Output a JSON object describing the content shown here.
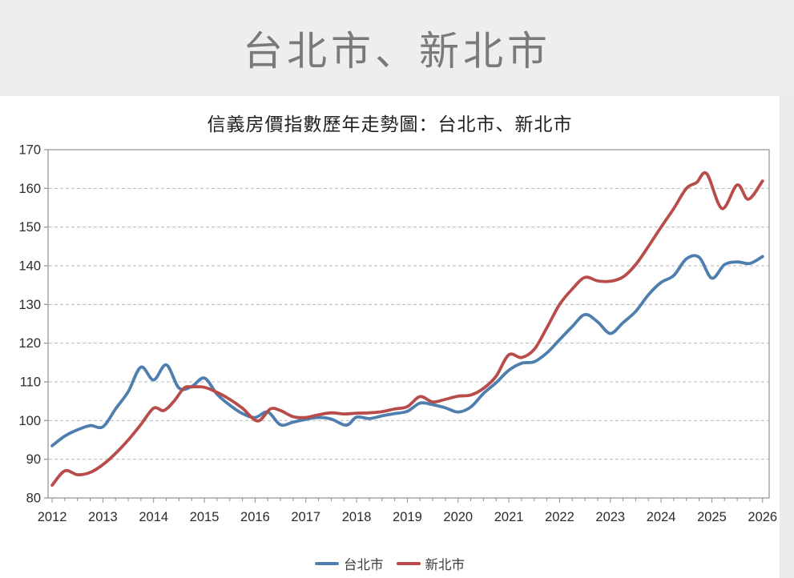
{
  "banner": {
    "title": "台北市、新北市"
  },
  "chart": {
    "title": "信義房價指數歷年走勢圖：台北市、新北市",
    "legend": {
      "taipei_label": "台北市",
      "new_taipei_label": "新北市"
    },
    "colors": {
      "taipei": "#4d7eae",
      "new_taipei": "#b84c4a",
      "gridline": "#b9b9b9",
      "plot_border": "#8f8f8f",
      "tick_text": "#2b2b2b"
    }
  },
  "chart_data": {
    "type": "line",
    "title": "信義房價指數歷年走勢圖：台北市、新北市",
    "xlabel": "",
    "ylabel": "",
    "xlim": [
      2011.92,
      2026.13
    ],
    "ylim": [
      80,
      170
    ],
    "x_ticks": [
      2012,
      2013,
      2014,
      2015,
      2016,
      2017,
      2018,
      2019,
      2020,
      2021,
      2022,
      2023,
      2024,
      2025,
      2026
    ],
    "y_ticks": [
      80,
      90,
      100,
      110,
      120,
      130,
      140,
      150,
      160,
      170
    ],
    "grid": "horizontal-dashed",
    "legend_position": "bottom",
    "line_style": "smooth",
    "series": [
      {
        "id": "taipei",
        "name": "台北市",
        "color": "#4d7eae",
        "points": [
          [
            2012.0,
            93.5
          ],
          [
            2012.25,
            96.0
          ],
          [
            2012.5,
            97.6
          ],
          [
            2012.75,
            98.7
          ],
          [
            2013.0,
            98.4
          ],
          [
            2013.25,
            103.0
          ],
          [
            2013.5,
            107.5
          ],
          [
            2013.75,
            113.8
          ],
          [
            2014.0,
            110.5
          ],
          [
            2014.25,
            114.4
          ],
          [
            2014.5,
            108.4
          ],
          [
            2014.75,
            108.8
          ],
          [
            2015.0,
            111.0
          ],
          [
            2015.25,
            106.8
          ],
          [
            2015.5,
            104.0
          ],
          [
            2015.75,
            101.8
          ],
          [
            2016.0,
            100.8
          ],
          [
            2016.25,
            102.2
          ],
          [
            2016.5,
            98.9
          ],
          [
            2016.75,
            99.6
          ],
          [
            2017.0,
            100.3
          ],
          [
            2017.25,
            100.8
          ],
          [
            2017.5,
            100.4
          ],
          [
            2017.8,
            98.8
          ],
          [
            2018.0,
            100.9
          ],
          [
            2018.25,
            100.5
          ],
          [
            2018.5,
            101.2
          ],
          [
            2018.75,
            101.8
          ],
          [
            2019.0,
            102.4
          ],
          [
            2019.25,
            104.5
          ],
          [
            2019.5,
            104.1
          ],
          [
            2019.75,
            103.3
          ],
          [
            2020.0,
            102.2
          ],
          [
            2020.25,
            103.5
          ],
          [
            2020.5,
            107.0
          ],
          [
            2020.75,
            109.8
          ],
          [
            2021.0,
            113.0
          ],
          [
            2021.25,
            114.8
          ],
          [
            2021.5,
            115.2
          ],
          [
            2021.75,
            117.5
          ],
          [
            2022.0,
            120.9
          ],
          [
            2022.25,
            124.3
          ],
          [
            2022.5,
            127.4
          ],
          [
            2022.75,
            125.5
          ],
          [
            2023.0,
            122.5
          ],
          [
            2023.25,
            125.3
          ],
          [
            2023.5,
            128.2
          ],
          [
            2023.75,
            132.5
          ],
          [
            2024.0,
            135.7
          ],
          [
            2024.25,
            137.5
          ],
          [
            2024.5,
            141.8
          ],
          [
            2024.75,
            142.2
          ],
          [
            2025.0,
            136.8
          ],
          [
            2025.25,
            140.3
          ],
          [
            2025.5,
            141.0
          ],
          [
            2025.75,
            140.6
          ],
          [
            2026.0,
            142.4
          ]
        ]
      },
      {
        "id": "new-taipei",
        "name": "新北市",
        "color": "#b84c4a",
        "points": [
          [
            2012.0,
            83.3
          ],
          [
            2012.25,
            87.0
          ],
          [
            2012.5,
            86.0
          ],
          [
            2012.75,
            86.6
          ],
          [
            2013.0,
            88.6
          ],
          [
            2013.25,
            91.5
          ],
          [
            2013.5,
            95.0
          ],
          [
            2013.75,
            99.0
          ],
          [
            2014.0,
            103.2
          ],
          [
            2014.2,
            102.6
          ],
          [
            2014.4,
            105.0
          ],
          [
            2014.6,
            108.4
          ],
          [
            2014.75,
            108.7
          ],
          [
            2015.0,
            108.6
          ],
          [
            2015.25,
            107.3
          ],
          [
            2015.5,
            105.5
          ],
          [
            2015.75,
            103.2
          ],
          [
            2016.05,
            99.9
          ],
          [
            2016.3,
            103.0
          ],
          [
            2016.5,
            102.6
          ],
          [
            2016.75,
            101.0
          ],
          [
            2017.0,
            100.8
          ],
          [
            2017.25,
            101.5
          ],
          [
            2017.5,
            102.0
          ],
          [
            2017.75,
            101.7
          ],
          [
            2018.0,
            101.9
          ],
          [
            2018.25,
            102.0
          ],
          [
            2018.5,
            102.3
          ],
          [
            2018.75,
            103.0
          ],
          [
            2019.0,
            103.6
          ],
          [
            2019.25,
            106.2
          ],
          [
            2019.5,
            104.8
          ],
          [
            2019.75,
            105.5
          ],
          [
            2020.0,
            106.3
          ],
          [
            2020.25,
            106.6
          ],
          [
            2020.5,
            108.3
          ],
          [
            2020.75,
            111.5
          ],
          [
            2021.0,
            117.0
          ],
          [
            2021.25,
            116.3
          ],
          [
            2021.5,
            118.4
          ],
          [
            2021.75,
            124.0
          ],
          [
            2022.0,
            130.0
          ],
          [
            2022.25,
            134.0
          ],
          [
            2022.5,
            137.0
          ],
          [
            2022.75,
            136.1
          ],
          [
            2023.0,
            136.0
          ],
          [
            2023.25,
            137.1
          ],
          [
            2023.5,
            140.3
          ],
          [
            2023.75,
            145.0
          ],
          [
            2024.0,
            150.0
          ],
          [
            2024.25,
            154.8
          ],
          [
            2024.5,
            160.0
          ],
          [
            2024.7,
            161.5
          ],
          [
            2024.9,
            163.8
          ],
          [
            2025.2,
            154.8
          ],
          [
            2025.5,
            160.9
          ],
          [
            2025.72,
            157.2
          ],
          [
            2026.0,
            161.9
          ]
        ]
      }
    ]
  }
}
